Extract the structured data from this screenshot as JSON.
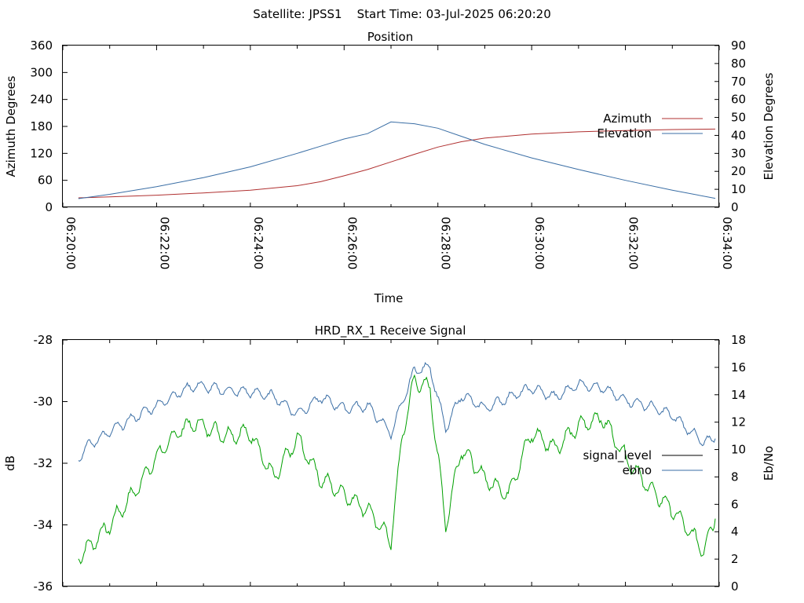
{
  "header": {
    "title": "Satellite: JPSS1    Start Time: 03-Jul-2025 06:20:20"
  },
  "chart_data": [
    {
      "type": "line",
      "title": "Position",
      "xlabel": "Time",
      "ylabel": "Azimuth Degrees",
      "y2label": "Elevation Degrees",
      "xlim": [
        "06:20:00",
        "06:34:00"
      ],
      "ylim": [
        0,
        360
      ],
      "y2lim": [
        0,
        90
      ],
      "x_ticks": [
        "06:20:00",
        "06:22:00",
        "06:24:00",
        "06:26:00",
        "06:28:00",
        "06:30:00",
        "06:32:00",
        "06:34:00"
      ],
      "y_ticks": [
        "0",
        "60",
        "120",
        "180",
        "240",
        "300",
        "360"
      ],
      "y2_ticks": [
        "0",
        "10",
        "20",
        "30",
        "40",
        "50",
        "60",
        "70",
        "80",
        "90"
      ],
      "legend_position": "right",
      "grid": false,
      "series": [
        {
          "name": "Azimuth",
          "axis": "left",
          "color": "#b03030",
          "x": [
            "06:20:20",
            "06:21:00",
            "06:22:00",
            "06:23:00",
            "06:24:00",
            "06:25:00",
            "06:25:30",
            "06:26:00",
            "06:26:30",
            "06:27:00",
            "06:27:30",
            "06:28:00",
            "06:28:30",
            "06:29:00",
            "06:30:00",
            "06:31:00",
            "06:32:00",
            "06:33:00",
            "06:33:55"
          ],
          "values": [
            21,
            23,
            27,
            32,
            38,
            48,
            57,
            70,
            84,
            101,
            118,
            134,
            146,
            154,
            163,
            168,
            171,
            173,
            174
          ]
        },
        {
          "name": "Elevation",
          "axis": "right",
          "color": "#3a6ea5",
          "x": [
            "06:20:20",
            "06:21:00",
            "06:22:00",
            "06:23:00",
            "06:24:00",
            "06:25:00",
            "06:25:30",
            "06:26:00",
            "06:26:30",
            "06:27:00",
            "06:27:30",
            "06:28:00",
            "06:28:30",
            "06:29:00",
            "06:30:00",
            "06:31:00",
            "06:32:00",
            "06:33:00",
            "06:33:55"
          ],
          "values": [
            4.8,
            7.2,
            11.5,
            16.5,
            22.5,
            30,
            34,
            38,
            41,
            47.5,
            46.5,
            44,
            39.5,
            35,
            27.5,
            21,
            15,
            9.5,
            5
          ]
        }
      ]
    },
    {
      "type": "line",
      "title": "HRD_RX_1 Receive Signal",
      "ylabel": "dB",
      "y2label": "Eb/No",
      "ylim": [
        -36,
        -28
      ],
      "y2lim": [
        0,
        18
      ],
      "y_ticks": [
        "-28",
        "-30",
        "-32",
        "-34",
        "-36"
      ],
      "y2_ticks": [
        "0",
        "2",
        "4",
        "6",
        "8",
        "10",
        "12",
        "14",
        "16",
        "18"
      ],
      "legend_position": "right",
      "grid": false,
      "series": [
        {
          "name": "signal_level",
          "axis": "left",
          "color": "#00a000",
          "x": [
            "06:20:20",
            "06:20:30",
            "06:21:00",
            "06:21:30",
            "06:22:00",
            "06:22:30",
            "06:22:50",
            "06:23:30",
            "06:24:00",
            "06:24:30",
            "06:25:00",
            "06:25:30",
            "06:26:00",
            "06:26:30",
            "06:27:00",
            "06:27:15",
            "06:27:30",
            "06:27:50",
            "06:28:10",
            "06:28:30",
            "06:29:00",
            "06:29:30",
            "06:30:00",
            "06:30:30",
            "06:31:00",
            "06:31:30",
            "06:32:00",
            "06:32:30",
            "06:33:00",
            "06:33:40",
            "06:33:55"
          ],
          "values": [
            -35.0,
            -34.8,
            -34.0,
            -33.0,
            -31.8,
            -30.9,
            -30.7,
            -31.1,
            -31.0,
            -32.5,
            -31.2,
            -32.5,
            -33.0,
            -33.5,
            -34.5,
            -31.0,
            -29.3,
            -29.6,
            -34.0,
            -31.5,
            -32.5,
            -33.0,
            -31.0,
            -31.5,
            -30.8,
            -30.5,
            -31.8,
            -32.8,
            -33.5,
            -34.8,
            -33.8
          ]
        },
        {
          "name": "ebno",
          "axis": "right",
          "color": "#3a6ea5",
          "x": [
            "06:20:20",
            "06:20:30",
            "06:21:00",
            "06:21:30",
            "06:22:00",
            "06:22:30",
            "06:22:50",
            "06:23:30",
            "06:24:00",
            "06:24:30",
            "06:25:00",
            "06:25:30",
            "06:26:00",
            "06:26:30",
            "06:27:00",
            "06:27:15",
            "06:27:30",
            "06:27:50",
            "06:28:10",
            "06:28:30",
            "06:29:00",
            "06:29:30",
            "06:30:00",
            "06:30:30",
            "06:31:00",
            "06:31:30",
            "06:32:00",
            "06:32:30",
            "06:33:00",
            "06:33:40",
            "06:33:55"
          ],
          "values": [
            9.4,
            10.2,
            11.3,
            12.3,
            13.2,
            14.2,
            14.7,
            14.3,
            14.2,
            13.9,
            12.6,
            13.8,
            13.0,
            13.2,
            11.2,
            13.5,
            15.8,
            16.0,
            11.5,
            14.0,
            13.0,
            13.8,
            14.5,
            13.8,
            14.8,
            14.5,
            13.6,
            13.2,
            12.5,
            10.5,
            10.8
          ]
        }
      ]
    }
  ]
}
